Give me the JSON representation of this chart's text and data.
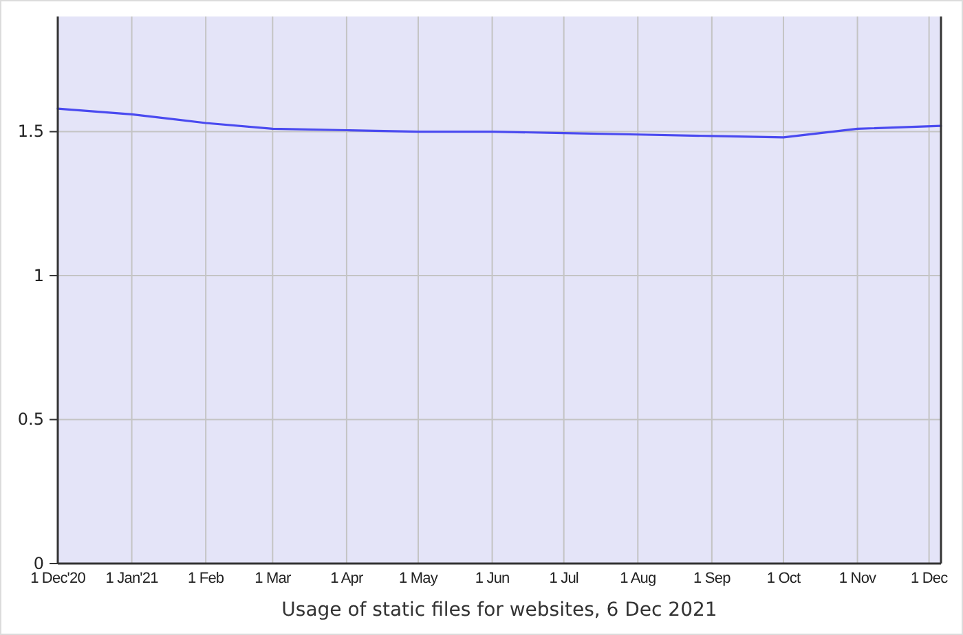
{
  "chart_data": {
    "type": "line",
    "title": "Usage of static files for websites, 6 Dec 2021",
    "x": [
      "2020-12-01",
      "2021-01-01",
      "2021-02-01",
      "2021-03-01",
      "2021-04-01",
      "2021-05-01",
      "2021-06-01",
      "2021-07-01",
      "2021-08-01",
      "2021-09-01",
      "2021-10-01",
      "2021-11-01",
      "2021-12-06"
    ],
    "series": [
      {
        "color": "#4a4af0",
        "values": [
          1.58,
          1.56,
          1.53,
          1.51,
          1.505,
          1.5,
          1.5,
          1.495,
          1.49,
          1.485,
          1.48,
          1.51,
          1.52
        ]
      }
    ],
    "xlim": [
      "2020-12-01",
      "2021-12-06"
    ],
    "xticks": [
      {
        "value": "2020-12-01",
        "label": "1 Dec'20"
      },
      {
        "value": "2021-01-01",
        "label": "1 Jan'21"
      },
      {
        "value": "2021-02-01",
        "label": "1 Feb"
      },
      {
        "value": "2021-03-01",
        "label": "1 Mar"
      },
      {
        "value": "2021-04-01",
        "label": "1 Apr"
      },
      {
        "value": "2021-05-01",
        "label": "1 May"
      },
      {
        "value": "2021-06-01",
        "label": "1 Jun"
      },
      {
        "value": "2021-07-01",
        "label": "1 Jul"
      },
      {
        "value": "2021-08-01",
        "label": "1 Aug"
      },
      {
        "value": "2021-09-01",
        "label": "1 Sep"
      },
      {
        "value": "2021-10-01",
        "label": "1 Oct"
      },
      {
        "value": "2021-11-01",
        "label": "1 Nov"
      },
      {
        "value": "2021-12-01",
        "label": "1 Dec"
      }
    ],
    "ylim": [
      0,
      1.9
    ],
    "yticks": [
      0,
      0.5,
      1,
      1.5
    ],
    "grid": true,
    "marker": "none",
    "line_style": "solid"
  }
}
